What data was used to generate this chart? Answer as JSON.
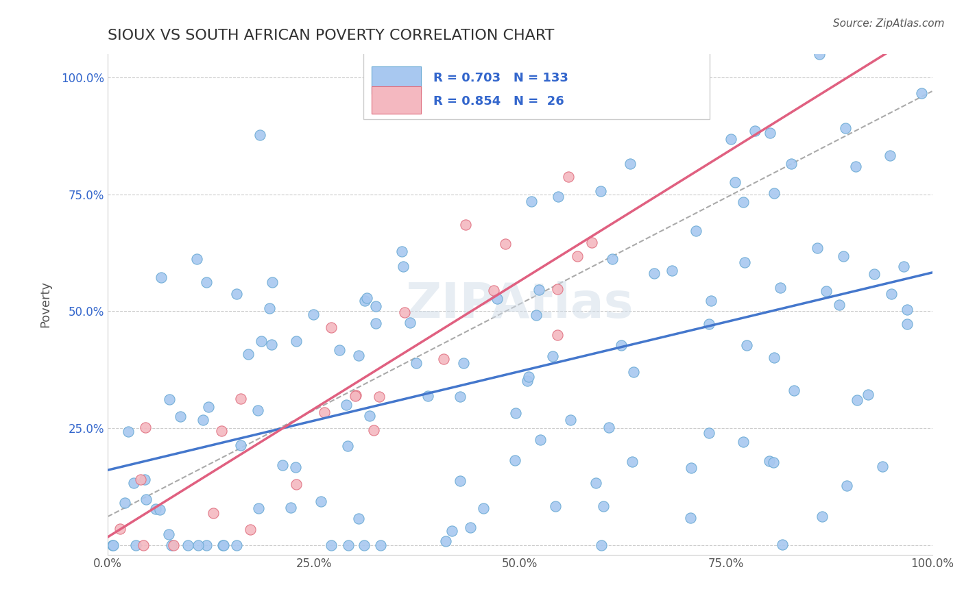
{
  "title": "SIOUX VS SOUTH AFRICAN POVERTY CORRELATION CHART",
  "source": "Source: ZipAtlas.com",
  "xlabel": "",
  "ylabel": "Poverty",
  "xlim": [
    0,
    1
  ],
  "ylim": [
    0,
    1
  ],
  "xticks": [
    0,
    0.25,
    0.5,
    0.75,
    1.0
  ],
  "yticks": [
    0,
    0.25,
    0.5,
    0.75,
    1.0
  ],
  "xticklabels": [
    "0.0%",
    "25.0%",
    "50.0%",
    "75.0%",
    "100.0%"
  ],
  "yticklabels": [
    "",
    "25.0%",
    "50.0%",
    "75.0%",
    "100.0%"
  ],
  "sioux_color": "#a8c8f0",
  "sioux_edge": "#6aaad4",
  "sa_color": "#f4b8c0",
  "sa_edge": "#e07080",
  "r_sioux": 0.703,
  "n_sioux": 133,
  "r_sa": 0.854,
  "n_sa": 26,
  "legend_r_color": "#3366cc",
  "watermark": "ZIPAtlas",
  "background_color": "#ffffff",
  "grid_color": "#cccccc",
  "sioux_seed": 42,
  "sa_seed": 7
}
